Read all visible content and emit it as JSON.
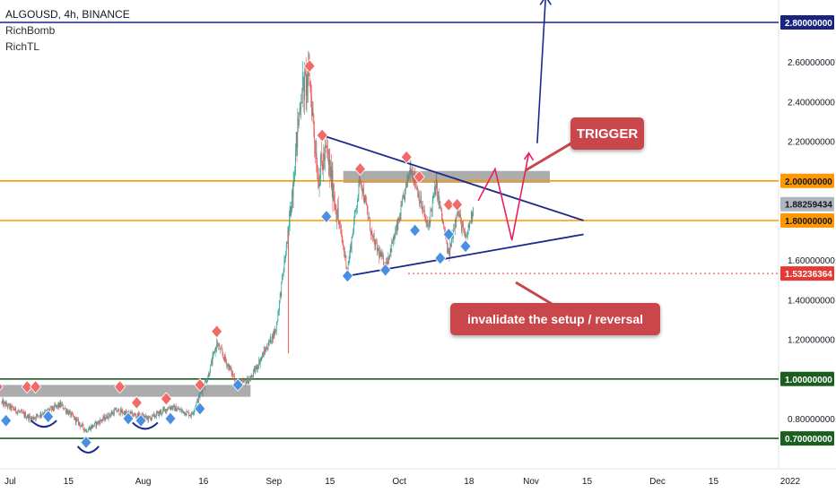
{
  "header": {
    "symbol_line": "ALGOUSD, 4h, BINANCE",
    "indicator1": "RichBomb",
    "indicator2": "RichTL"
  },
  "annotations": {
    "trigger": "TRIGGER",
    "invalidate": "invalidate the setup / reversal"
  },
  "colors": {
    "candle_up": "#26a69a",
    "candle_down": "#ef5350",
    "orange_level": "#ff9800",
    "green_level": "#1b5e20",
    "navy_level": "#1a237e",
    "trendline": "#1a2a8c",
    "projection": "#e91e63",
    "marker_up": "#4a90e2",
    "marker_down": "#f06a6a",
    "zone": "#9e9e9e",
    "invalidation": "#e53935",
    "price_badge": "#b2b5be"
  },
  "chart_data": {
    "type": "candlestick",
    "symbol": "ALGOUSD",
    "timeframe": "4h",
    "exchange": "BINANCE",
    "ylim": [
      0.65,
      2.95
    ],
    "y_ticks": [
      "0.80000000",
      "1.00000000",
      "1.20000000",
      "1.40000000",
      "1.60000000",
      "1.80000000",
      "2.00000000",
      "2.20000000",
      "2.40000000",
      "2.60000000",
      "2.80000000"
    ],
    "y_tick_values": [
      0.8,
      1.0,
      1.2,
      1.4,
      1.6,
      1.8,
      2.0,
      2.2,
      2.4,
      2.6,
      2.8
    ],
    "x_ticks": [
      {
        "label": "Jul",
        "date": "2021-07-01"
      },
      {
        "label": "15",
        "date": "2021-07-15"
      },
      {
        "label": "Aug",
        "date": "2021-08-01"
      },
      {
        "label": "16",
        "date": "2021-08-16"
      },
      {
        "label": "Sep",
        "date": "2021-09-01"
      },
      {
        "label": "15",
        "date": "2021-09-15"
      },
      {
        "label": "Oct",
        "date": "2021-10-01"
      },
      {
        "label": "18",
        "date": "2021-10-18"
      },
      {
        "label": "Nov",
        "date": "2021-11-01"
      },
      {
        "label": "15",
        "date": "2021-11-15"
      },
      {
        "label": "Dec",
        "date": "2021-12-01"
      },
      {
        "label": "15",
        "date": "2021-12-15"
      },
      {
        "label": "2022",
        "date": "2022-01-01"
      }
    ],
    "horizontal_levels": [
      {
        "value": 2.8,
        "label": "2.80000000",
        "color": "#1a237e"
      },
      {
        "value": 2.0,
        "label": "2.00000000",
        "color": "#ff9800"
      },
      {
        "value": 1.8,
        "label": "1.80000000",
        "color": "#ff9800"
      },
      {
        "value": 1.0,
        "label": "1.00000000",
        "color": "#1b5e20"
      },
      {
        "value": 0.7,
        "label": "0.70000000",
        "color": "#1b5e20"
      }
    ],
    "current_price": {
      "value": 1.88259434,
      "label": "1.88259434"
    },
    "invalidation_level": {
      "value": 1.53236364,
      "label": "1.53236364"
    },
    "zones": [
      {
        "from": "2021-06-28",
        "to": "2021-08-29",
        "low": 0.91,
        "high": 0.97
      },
      {
        "from": "2021-09-20",
        "to": "2021-11-08",
        "low": 1.99,
        "high": 2.05
      }
    ],
    "trendlines": [
      {
        "from": {
          "date": "2021-09-15",
          "value": 2.23
        },
        "to": {
          "date": "2021-11-16",
          "value": 1.8
        }
      },
      {
        "from": {
          "date": "2021-09-21",
          "value": 1.52
        },
        "to": {
          "date": "2021-11-16",
          "value": 1.73
        }
      }
    ],
    "projection": [
      {
        "date": "2021-10-22",
        "value": 1.9
      },
      {
        "date": "2021-10-26",
        "value": 2.06
      },
      {
        "date": "2021-10-30",
        "value": 1.7
      },
      {
        "date": "2021-11-03",
        "value": 2.14
      }
    ],
    "breakout_arrow": {
      "from": {
        "date": "2021-11-05",
        "value": 2.19
      },
      "to": {
        "date": "2021-11-07",
        "value": 2.93
      }
    },
    "key_swings": [
      {
        "date": "2021-07-01",
        "value": 0.88
      },
      {
        "date": "2021-07-08",
        "value": 0.8
      },
      {
        "date": "2021-07-15",
        "value": 0.87
      },
      {
        "date": "2021-07-21",
        "value": 0.74
      },
      {
        "date": "2021-07-28",
        "value": 0.84
      },
      {
        "date": "2021-08-05",
        "value": 0.8
      },
      {
        "date": "2021-08-10",
        "value": 0.86
      },
      {
        "date": "2021-08-15",
        "value": 0.82
      },
      {
        "date": "2021-08-19",
        "value": 1.02
      },
      {
        "date": "2021-08-21",
        "value": 1.18
      },
      {
        "date": "2021-08-26",
        "value": 0.97
      },
      {
        "date": "2021-08-29",
        "value": 1.0
      },
      {
        "date": "2021-09-04",
        "value": 1.25
      },
      {
        "date": "2021-09-07",
        "value": 1.75
      },
      {
        "date": "2021-09-10",
        "value": 2.45
      },
      {
        "date": "2021-09-12",
        "value": 2.52
      },
      {
        "date": "2021-09-14",
        "value": 2.02
      },
      {
        "date": "2021-09-16",
        "value": 2.15
      },
      {
        "date": "2021-09-19",
        "value": 1.78
      },
      {
        "date": "2021-09-21",
        "value": 1.55
      },
      {
        "date": "2021-09-24",
        "value": 2.02
      },
      {
        "date": "2021-09-27",
        "value": 1.7
      },
      {
        "date": "2021-09-30",
        "value": 1.57
      },
      {
        "date": "2021-10-03",
        "value": 1.78
      },
      {
        "date": "2021-10-06",
        "value": 2.08
      },
      {
        "date": "2021-10-10",
        "value": 1.76
      },
      {
        "date": "2021-10-12",
        "value": 1.98
      },
      {
        "date": "2021-10-15",
        "value": 1.62
      },
      {
        "date": "2021-10-17",
        "value": 1.86
      },
      {
        "date": "2021-10-19",
        "value": 1.7
      },
      {
        "date": "2021-10-21",
        "value": 1.88
      }
    ],
    "markers_down": [
      {
        "date": "2021-06-30",
        "value": 0.96
      },
      {
        "date": "2021-07-07",
        "value": 0.96
      },
      {
        "date": "2021-07-09",
        "value": 0.96
      },
      {
        "date": "2021-07-29",
        "value": 0.96
      },
      {
        "date": "2021-08-02",
        "value": 0.88
      },
      {
        "date": "2021-08-09",
        "value": 0.9
      },
      {
        "date": "2021-08-17",
        "value": 0.97
      },
      {
        "date": "2021-08-21",
        "value": 1.24
      },
      {
        "date": "2021-09-12",
        "value": 2.58
      },
      {
        "date": "2021-09-15",
        "value": 2.23
      },
      {
        "date": "2021-09-24",
        "value": 2.06
      },
      {
        "date": "2021-10-05",
        "value": 2.12
      },
      {
        "date": "2021-10-08",
        "value": 2.02
      },
      {
        "date": "2021-10-15",
        "value": 1.88
      },
      {
        "date": "2021-10-17",
        "value": 1.88
      }
    ],
    "markers_up": [
      {
        "date": "2021-07-02",
        "value": 0.79
      },
      {
        "date": "2021-07-12",
        "value": 0.81
      },
      {
        "date": "2021-07-21",
        "value": 0.68
      },
      {
        "date": "2021-07-31",
        "value": 0.8
      },
      {
        "date": "2021-08-03",
        "value": 0.79
      },
      {
        "date": "2021-08-10",
        "value": 0.8
      },
      {
        "date": "2021-08-17",
        "value": 0.85
      },
      {
        "date": "2021-08-26",
        "value": 0.97
      },
      {
        "date": "2021-09-16",
        "value": 1.82
      },
      {
        "date": "2021-09-21",
        "value": 1.52
      },
      {
        "date": "2021-09-30",
        "value": 1.55
      },
      {
        "date": "2021-10-07",
        "value": 1.75
      },
      {
        "date": "2021-10-13",
        "value": 1.61
      },
      {
        "date": "2021-10-15",
        "value": 1.73
      },
      {
        "date": "2021-10-19",
        "value": 1.67
      }
    ]
  }
}
